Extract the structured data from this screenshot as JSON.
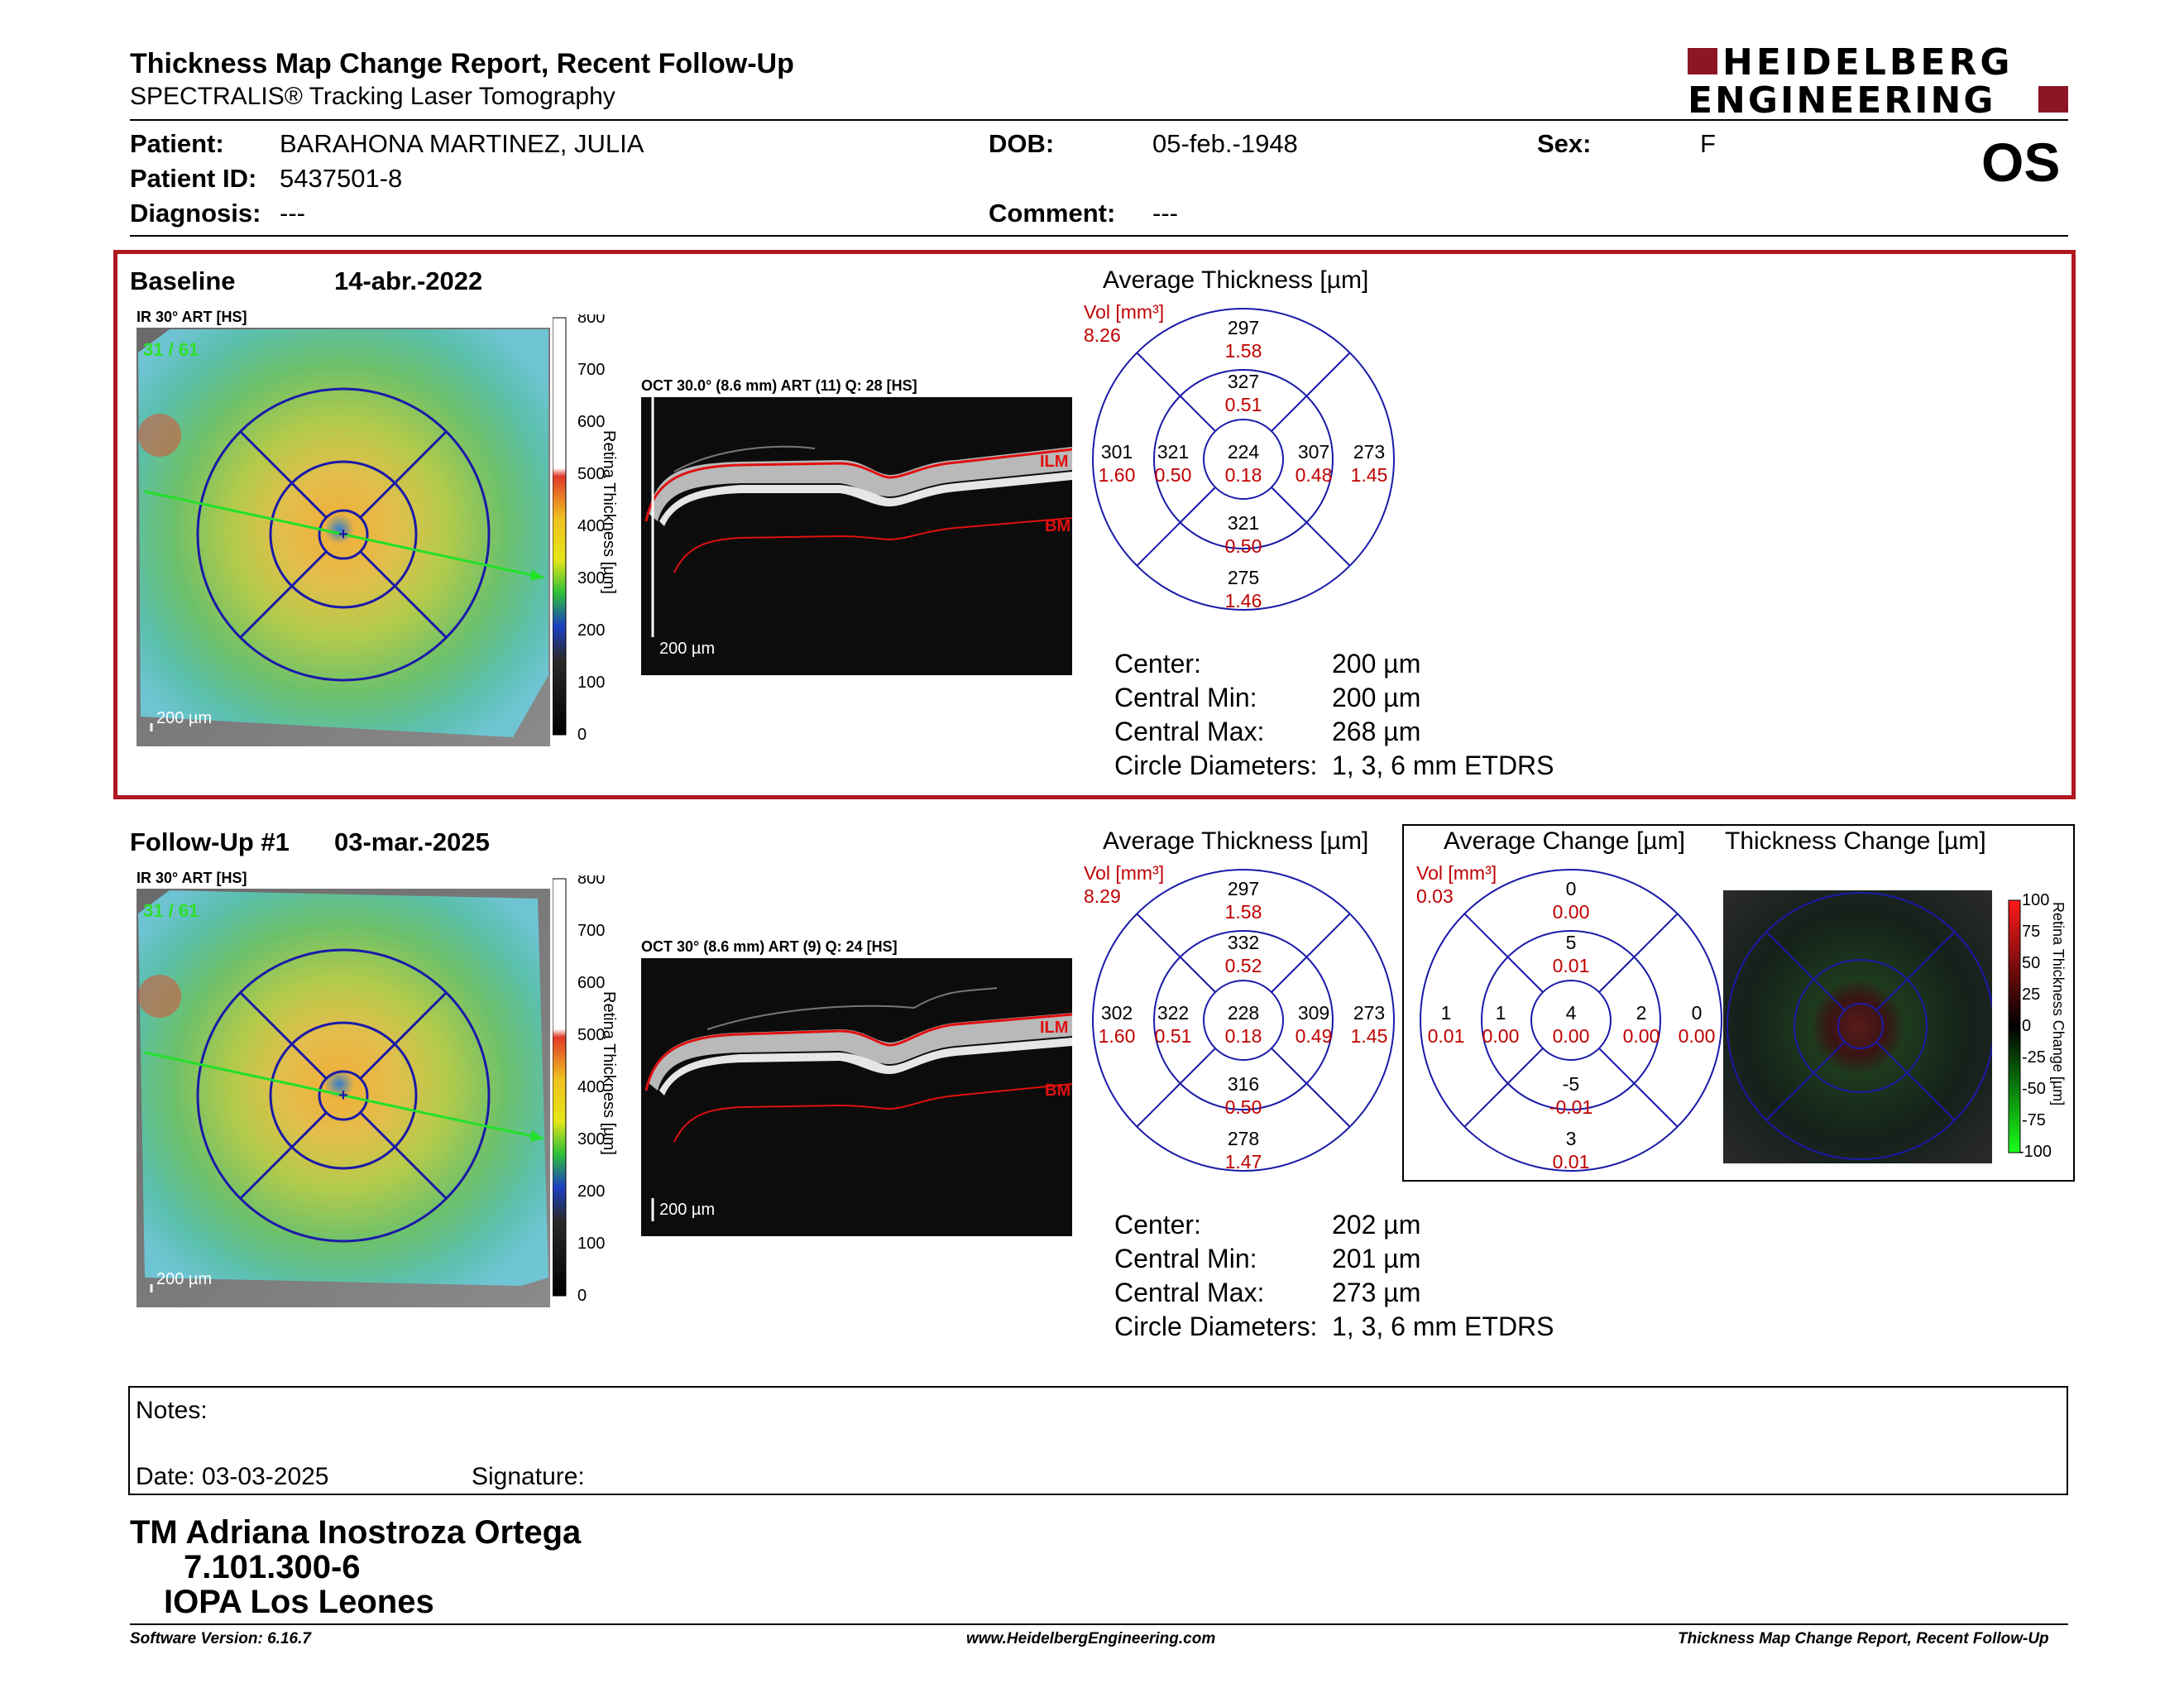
{
  "header": {
    "title": "Thickness Map Change Report, Recent Follow-Up",
    "subtitle": "SPECTRALIS® Tracking Laser Tomography",
    "logo_line1": "HEIDELBERG",
    "logo_line2": "ENGINEERING",
    "eye": "OS"
  },
  "patient": {
    "patient_label": "Patient:",
    "patient_value": "BARAHONA MARTINEZ, JULIA",
    "id_label": "Patient ID:",
    "id_value": "5437501-8",
    "diagnosis_label": "Diagnosis:",
    "diagnosis_value": "---",
    "dob_label": "DOB:",
    "dob_value": "05-feb.-1948",
    "comment_label": "Comment:",
    "comment_value": "---",
    "sex_label": "Sex:",
    "sex_value": "F"
  },
  "baseline": {
    "label": "Baseline",
    "date": "14-abr.-2022",
    "ir_title": "IR 30° ART [HS]",
    "frames": "31 / 61",
    "oct_title": "OCT 30.0° (8.6 mm) ART (11) Q: 28 [HS]",
    "scale": "200 µm",
    "avg_title": "Average Thickness [µm]",
    "vol_label": "Vol [mm³]",
    "vol_value": "8.26",
    "sectors": {
      "outer_sup": [
        "297",
        "1.58"
      ],
      "inner_sup": [
        "327",
        "0.51"
      ],
      "outer_nas": [
        "301",
        "1.60"
      ],
      "inner_nas": [
        "321",
        "0.50"
      ],
      "center": [
        "224",
        "0.18"
      ],
      "inner_tmp": [
        "307",
        "0.48"
      ],
      "outer_tmp": [
        "273",
        "1.45"
      ],
      "inner_inf": [
        "321",
        "0.50"
      ],
      "outer_inf": [
        "275",
        "1.46"
      ]
    },
    "stats": {
      "center_label": "Center:",
      "center_value": "200 µm",
      "min_label": "Central Min:",
      "min_value": "200 µm",
      "max_label": "Central Max:",
      "max_value": "268 µm",
      "diam_label": "Circle Diameters:",
      "diam_value": "1, 3, 6 mm ETDRS"
    }
  },
  "followup": {
    "label": "Follow-Up #1",
    "date": "03-mar.-2025",
    "ir_title": "IR 30° ART [HS]",
    "frames": "31 / 61",
    "oct_title": "OCT 30° (8.6 mm) ART (9) Q: 24 [HS]",
    "scale": "200 µm",
    "avg_title": "Average Thickness [µm]",
    "vol_label": "Vol [mm³]",
    "vol_value": "8.29",
    "sectors": {
      "outer_sup": [
        "297",
        "1.58"
      ],
      "inner_sup": [
        "332",
        "0.52"
      ],
      "outer_nas": [
        "302",
        "1.60"
      ],
      "inner_nas": [
        "322",
        "0.51"
      ],
      "center": [
        "228",
        "0.18"
      ],
      "inner_tmp": [
        "309",
        "0.49"
      ],
      "outer_tmp": [
        "273",
        "1.45"
      ],
      "inner_inf": [
        "316",
        "0.50"
      ],
      "outer_inf": [
        "278",
        "1.47"
      ]
    },
    "stats": {
      "center_label": "Center:",
      "center_value": "202 µm",
      "min_label": "Central Min:",
      "min_value": "201 µm",
      "max_label": "Central Max:",
      "max_value": "273 µm",
      "diam_label": "Circle Diameters:",
      "diam_value": "1, 3, 6 mm ETDRS"
    },
    "change_title": "Average Change [µm]",
    "change_vol_label": "Vol [mm³]",
    "change_vol_value": "0.03",
    "change_sectors": {
      "outer_sup": [
        "0",
        "0.00"
      ],
      "inner_sup": [
        "5",
        "0.01"
      ],
      "outer_nas": [
        "1",
        "0.01"
      ],
      "inner_nas": [
        "1",
        "0.00"
      ],
      "center": [
        "4",
        "0.00"
      ],
      "inner_tmp": [
        "2",
        "0.00"
      ],
      "outer_tmp": [
        "0",
        "0.00"
      ],
      "inner_inf": [
        "-5",
        "-0.01"
      ],
      "outer_inf": [
        "3",
        "0.01"
      ]
    },
    "thickness_change_title": "Thickness Change [µm]",
    "change_scale_label": "Retina Thickness Change [µm]",
    "change_ticks": [
      "100",
      "75",
      "50",
      "25",
      "0",
      "-25",
      "-50",
      "-75",
      "-100"
    ]
  },
  "colorbar": {
    "label": "Retina Thickness [µm]",
    "ticks": [
      "800",
      "700",
      "600",
      "500",
      "400",
      "300",
      "200",
      "100",
      "0"
    ]
  },
  "oct_labels": {
    "ilm": "ILM",
    "bm": "BM"
  },
  "notes": {
    "notes_label": "Notes:",
    "date_label": "Date: 03-03-2025",
    "signature_label": "Signature:"
  },
  "signoff": {
    "line1": "TM Adriana Inostroza Ortega",
    "line2": "7.101.300-6",
    "line3": "IOPA Los Leones"
  },
  "footer": {
    "left": "Software Version: 6.16.7",
    "center": "www.HeidelbergEngineering.com",
    "right": "Thickness Map Change Report, Recent Follow-Up"
  },
  "colors": {
    "accent_red": "#b0171f",
    "etdrs_blue": "#1a1aa8",
    "value_red": "#c00000"
  }
}
